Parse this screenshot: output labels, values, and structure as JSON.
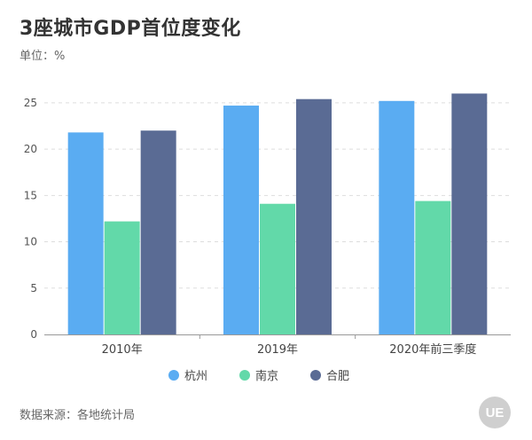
{
  "chart_data": {
    "type": "bar",
    "title": "3座城市GDP首位度变化",
    "subtitle": "单位：%",
    "source": "数据来源：各地统计局",
    "logo_text": "UE",
    "xlabel": "",
    "ylabel": "",
    "ylim": [
      0,
      27
    ],
    "yticks": [
      0,
      5,
      10,
      15,
      20,
      25
    ],
    "grid": true,
    "legend_position": "bottom-center",
    "categories": [
      "2010年",
      "2019年",
      "2020年前三季度"
    ],
    "series": [
      {
        "name": "杭州",
        "color": "#5aacf2",
        "values": [
          21.8,
          24.7,
          25.2
        ]
      },
      {
        "name": "南京",
        "color": "#62d9a9",
        "values": [
          12.2,
          14.1,
          14.4
        ]
      },
      {
        "name": "合肥",
        "color": "#5a6b94",
        "values": [
          22.0,
          25.4,
          26.0
        ]
      }
    ]
  }
}
